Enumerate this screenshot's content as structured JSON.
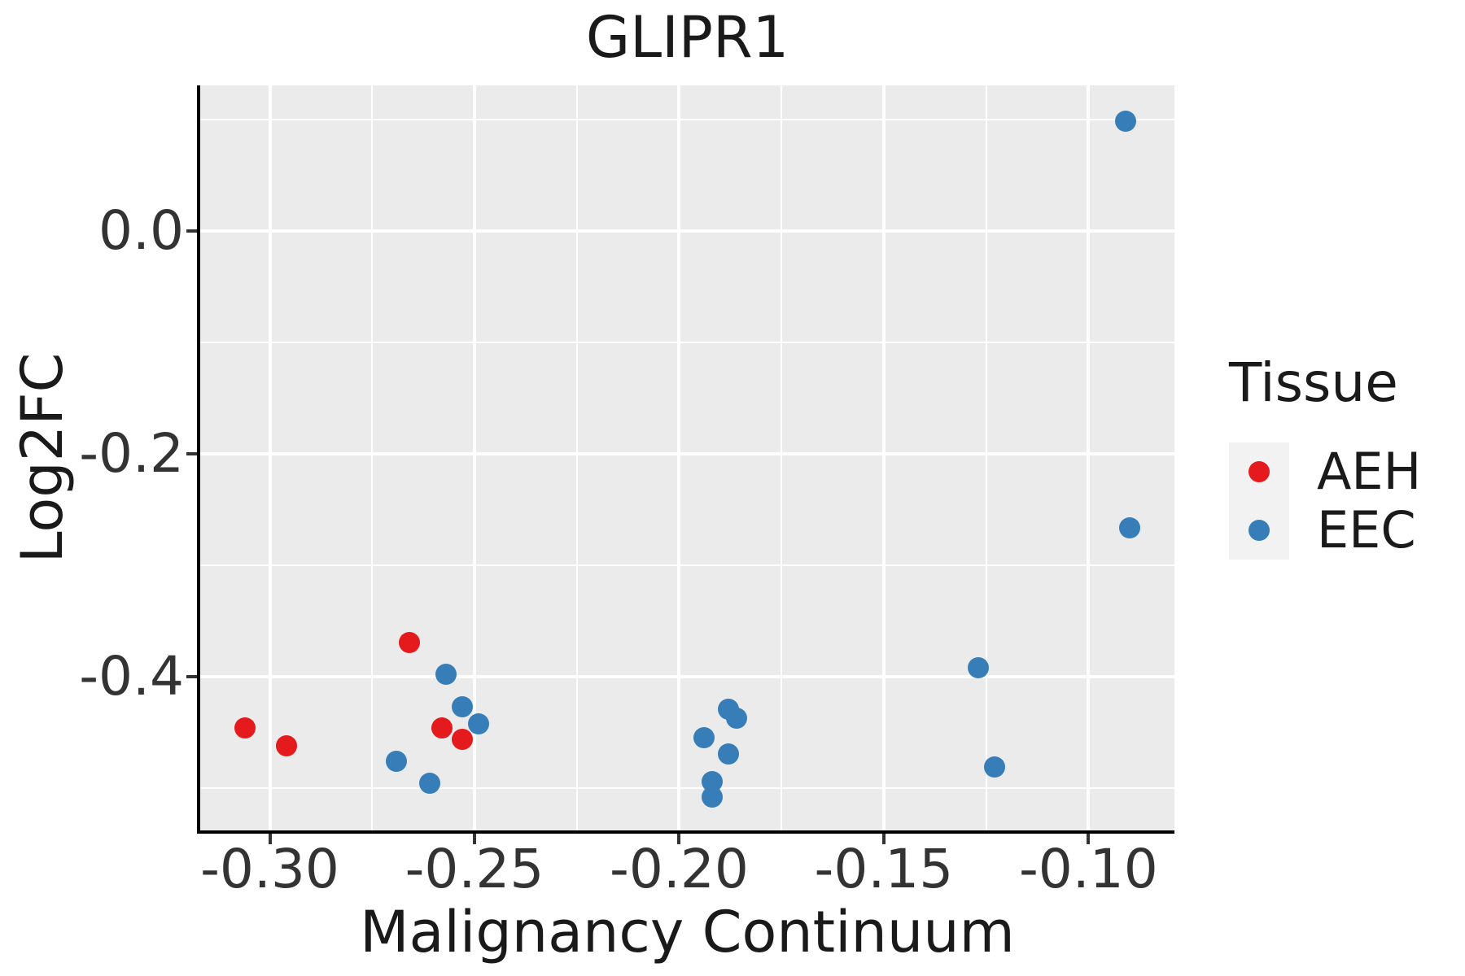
{
  "title": "GLIPR1",
  "chart_data": {
    "type": "scatter",
    "title": "GLIPR1",
    "xlabel": "Malignancy Continuum",
    "ylabel": "Log2FC",
    "xlim": [
      -0.317,
      -0.079
    ],
    "ylim": [
      -0.538,
      0.131
    ],
    "grid": "on",
    "panel_bg": "#EBEBEB",
    "grid_color": "#FFFFFF",
    "x_axis": {
      "tick_values": [
        -0.3,
        -0.25,
        -0.2,
        -0.15,
        -0.1
      ],
      "tick_labels": [
        "-0.30",
        "-0.25",
        "-0.20",
        "-0.15",
        "-0.10"
      ],
      "minor_tick_values": [
        -0.275,
        -0.225,
        -0.175,
        -0.125
      ]
    },
    "y_axis": {
      "tick_values": [
        0.0,
        -0.2,
        -0.4
      ],
      "tick_labels": [
        "0.0",
        "-0.2",
        "-0.4"
      ],
      "minor_tick_values": [
        0.1,
        -0.1,
        -0.3,
        -0.5
      ]
    },
    "legend": {
      "title": "Tissue",
      "position": "right",
      "key_bg": "#F2F2F2",
      "entries": [
        {
          "label": "AEH",
          "color": "#E41A1C"
        },
        {
          "label": "EEC",
          "color": "#377EB8"
        }
      ]
    },
    "series": [
      {
        "name": "AEH",
        "color": "#E41A1C",
        "points": [
          [
            -0.306,
            -0.446
          ],
          [
            -0.296,
            -0.462
          ],
          [
            -0.266,
            -0.369
          ],
          [
            -0.258,
            -0.446
          ],
          [
            -0.253,
            -0.456
          ]
        ]
      },
      {
        "name": "EEC",
        "color": "#377EB8",
        "points": [
          [
            -0.257,
            -0.398
          ],
          [
            -0.253,
            -0.427
          ],
          [
            -0.249,
            -0.442
          ],
          [
            -0.269,
            -0.476
          ],
          [
            -0.261,
            -0.496
          ],
          [
            -0.188,
            -0.429
          ],
          [
            -0.186,
            -0.437
          ],
          [
            -0.194,
            -0.455
          ],
          [
            -0.188,
            -0.469
          ],
          [
            -0.192,
            -0.494
          ],
          [
            -0.192,
            -0.508
          ],
          [
            -0.127,
            -0.392
          ],
          [
            -0.123,
            -0.481
          ],
          [
            -0.091,
            0.099
          ],
          [
            -0.09,
            -0.266
          ]
        ]
      }
    ]
  }
}
